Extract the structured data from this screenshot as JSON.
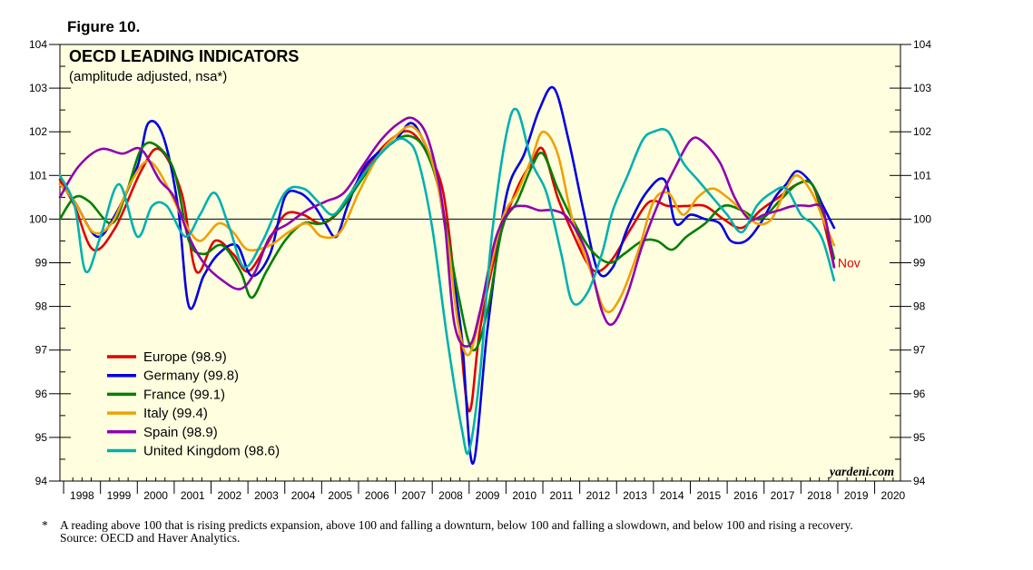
{
  "figure_label": "Figure 10.",
  "watermark": "yardeni.com",
  "footnote": {
    "marker": "*",
    "text": "A reading above 100 that is rising predicts expansion, above 100 and falling a downturn, below 100 and falling a slowdown, and below 100 and rising a recovery.",
    "source": "Source: OECD and Haver Analytics."
  },
  "chart_data": {
    "type": "line",
    "title": "OECD LEADING INDICATORS",
    "subtitle": "(amplitude adjusted, nsa*)",
    "xlabel": "",
    "ylabel": "",
    "xlim": [
      1997.9,
      2020.7
    ],
    "ylim": [
      94,
      104
    ],
    "y_ticks": [
      94,
      95,
      96,
      97,
      98,
      99,
      100,
      101,
      102,
      103,
      104
    ],
    "x_tick_labels": [
      "1998",
      "1999",
      "2000",
      "2001",
      "2002",
      "2003",
      "2004",
      "2005",
      "2006",
      "2007",
      "2008",
      "2009",
      "2010",
      "2011",
      "2012",
      "2013",
      "2014",
      "2015",
      "2016",
      "2017",
      "2018",
      "2019",
      "2020"
    ],
    "reference_line": 100,
    "grid": false,
    "legend_position": "lower-left",
    "annotation": {
      "text": "Nov",
      "x": 2018.9,
      "y": 99.0,
      "color": "#e00000"
    },
    "series": [
      {
        "name": "Europe (98.9)",
        "color": "#e00000",
        "x": [
          1997.9,
          1998.3,
          1998.8,
          1999.4,
          2000.1,
          2000.6,
          2001.2,
          2001.6,
          2002.1,
          2002.6,
          2003.0,
          2003.5,
          2004.0,
          2004.5,
          2005.0,
          2005.5,
          2006.0,
          2006.5,
          2007.0,
          2007.4,
          2007.8,
          2008.3,
          2008.7,
          2009.0,
          2009.3,
          2009.8,
          2010.3,
          2010.7,
          2011.0,
          2011.4,
          2011.8,
          2012.2,
          2012.5,
          2012.9,
          2013.4,
          2013.9,
          2014.4,
          2014.9,
          2015.4,
          2015.9,
          2016.4,
          2016.9,
          2017.4,
          2017.9,
          2018.3,
          2018.6,
          2018.9
        ],
        "y": [
          100.9,
          100.3,
          99.3,
          99.8,
          101.1,
          101.6,
          100.6,
          98.8,
          99.5,
          99.2,
          98.8,
          99.4,
          100.1,
          100.1,
          99.9,
          100.2,
          100.9,
          101.5,
          101.9,
          102.0,
          101.6,
          100.6,
          97.8,
          95.6,
          97.5,
          99.5,
          100.7,
          101.3,
          101.6,
          100.5,
          99.7,
          99.0,
          98.8,
          99.1,
          99.8,
          100.4,
          100.3,
          100.3,
          100.3,
          100.0,
          99.8,
          100.2,
          100.5,
          100.8,
          100.8,
          100.0,
          98.9
        ]
      },
      {
        "name": "Germany (99.8)",
        "color": "#0000e0",
        "x": [
          1997.9,
          1998.3,
          1998.9,
          1999.4,
          2000.0,
          2000.3,
          2000.7,
          2001.1,
          2001.4,
          2001.8,
          2002.2,
          2002.7,
          2003.1,
          2003.6,
          2004.0,
          2004.4,
          2004.8,
          2005.1,
          2005.4,
          2005.7,
          2006.1,
          2006.5,
          2007.0,
          2007.4,
          2007.7,
          2008.1,
          2008.5,
          2008.8,
          2009.1,
          2009.5,
          2010.0,
          2010.5,
          2010.9,
          2011.3,
          2011.7,
          2012.1,
          2012.5,
          2012.9,
          2013.3,
          2013.8,
          2014.3,
          2014.6,
          2015.0,
          2015.4,
          2015.8,
          2016.1,
          2016.5,
          2016.9,
          2017.3,
          2017.6,
          2017.9,
          2018.3,
          2018.6,
          2018.9
        ],
        "y": [
          100.8,
          100.4,
          99.6,
          100.1,
          101.2,
          102.2,
          101.9,
          100.3,
          98.0,
          98.7,
          99.2,
          99.4,
          98.7,
          99.2,
          100.5,
          100.6,
          100.3,
          99.9,
          99.6,
          100.3,
          101.1,
          101.5,
          101.8,
          102.2,
          101.9,
          101.0,
          99.0,
          97.3,
          94.4,
          97.5,
          100.5,
          101.5,
          102.5,
          103.0,
          101.8,
          100.2,
          98.8,
          98.9,
          99.8,
          100.6,
          100.9,
          99.9,
          100.1,
          100.0,
          99.9,
          99.5,
          99.5,
          99.9,
          100.5,
          100.8,
          101.1,
          100.8,
          100.3,
          99.8
        ]
      },
      {
        "name": "France (99.1)",
        "color": "#008000",
        "x": [
          1997.9,
          1998.3,
          1998.7,
          1999.3,
          1999.7,
          2000.1,
          2000.5,
          2001.0,
          2001.4,
          2001.8,
          2002.3,
          2002.8,
          2003.1,
          2003.5,
          2004.0,
          2004.5,
          2005.0,
          2005.5,
          2006.0,
          2006.5,
          2007.0,
          2007.4,
          2007.8,
          2008.2,
          2008.7,
          2009.1,
          2009.5,
          2009.9,
          2010.3,
          2010.7,
          2011.0,
          2011.4,
          2011.8,
          2012.3,
          2012.8,
          2013.2,
          2013.7,
          2014.1,
          2014.5,
          2014.9,
          2015.4,
          2015.9,
          2016.4,
          2016.9,
          2017.4,
          2017.9,
          2018.3,
          2018.6,
          2018.9
        ],
        "y": [
          100.0,
          100.5,
          100.4,
          99.9,
          100.6,
          101.6,
          101.7,
          101.1,
          99.5,
          99.2,
          99.4,
          98.8,
          98.2,
          98.8,
          99.5,
          99.9,
          99.9,
          100.2,
          100.8,
          101.4,
          101.8,
          101.9,
          101.6,
          100.6,
          98.3,
          97.0,
          97.9,
          99.8,
          100.4,
          101.2,
          101.5,
          100.7,
          100.0,
          99.3,
          99.0,
          99.2,
          99.5,
          99.5,
          99.3,
          99.6,
          99.9,
          100.3,
          100.2,
          100.0,
          100.4,
          100.8,
          100.8,
          100.1,
          99.1
        ]
      },
      {
        "name": "Italy (99.4)",
        "color": "#f0a000",
        "x": [
          1997.9,
          1998.3,
          1998.8,
          1999.3,
          1999.8,
          2000.2,
          2000.5,
          2000.9,
          2001.3,
          2001.7,
          2002.2,
          2002.6,
          2003.0,
          2003.6,
          2004.1,
          2004.6,
          2005.0,
          2005.5,
          2006.0,
          2006.5,
          2007.0,
          2007.5,
          2008.0,
          2008.4,
          2008.7,
          2009.0,
          2009.4,
          2009.9,
          2010.3,
          2010.7,
          2011.0,
          2011.4,
          2011.8,
          2012.3,
          2012.7,
          2013.1,
          2013.6,
          2014.0,
          2014.4,
          2014.8,
          2015.2,
          2015.6,
          2016.0,
          2016.4,
          2016.8,
          2017.2,
          2017.6,
          2017.9,
          2018.3,
          2018.6,
          2018.9
        ],
        "y": [
          100.8,
          100.4,
          99.7,
          99.9,
          100.8,
          101.3,
          101.2,
          100.6,
          99.9,
          99.5,
          99.9,
          99.7,
          99.3,
          99.4,
          99.7,
          99.9,
          99.6,
          99.7,
          100.6,
          101.4,
          101.9,
          102.1,
          101.3,
          99.6,
          97.6,
          96.9,
          98.2,
          100.0,
          100.6,
          101.4,
          102.0,
          101.5,
          100.0,
          98.8,
          97.9,
          98.2,
          99.3,
          100.4,
          100.6,
          100.1,
          100.5,
          100.7,
          100.5,
          100.2,
          99.9,
          100.0,
          100.7,
          101.0,
          100.6,
          100.0,
          99.4
        ]
      },
      {
        "name": "Spain (98.9)",
        "color": "#9000b0",
        "x": [
          1997.9,
          1998.4,
          1999.0,
          1999.6,
          2000.1,
          2000.6,
          2001.0,
          2001.4,
          2001.8,
          2002.3,
          2002.8,
          2003.2,
          2003.6,
          2004.1,
          2004.6,
          2005.1,
          2005.6,
          2006.1,
          2006.6,
          2007.1,
          2007.5,
          2007.9,
          2008.3,
          2008.6,
          2009.0,
          2009.3,
          2009.7,
          2010.1,
          2010.5,
          2010.9,
          2011.3,
          2011.7,
          2012.2,
          2012.6,
          2012.9,
          2013.3,
          2013.7,
          2014.2,
          2014.6,
          2015.0,
          2015.3,
          2015.8,
          2016.2,
          2016.6,
          2017.0,
          2017.4,
          2017.8,
          2018.2,
          2018.6,
          2018.9
        ],
        "y": [
          100.5,
          101.2,
          101.6,
          101.5,
          101.6,
          100.9,
          100.5,
          99.6,
          99.0,
          98.6,
          98.4,
          98.8,
          99.6,
          99.9,
          100.2,
          100.4,
          100.6,
          101.2,
          101.8,
          102.2,
          102.3,
          101.8,
          100.2,
          97.6,
          97.1,
          97.9,
          99.5,
          100.2,
          100.3,
          100.2,
          100.2,
          100.0,
          99.2,
          97.9,
          97.6,
          98.3,
          99.4,
          100.5,
          101.2,
          101.8,
          101.8,
          101.3,
          100.5,
          100.0,
          100.1,
          100.2,
          100.3,
          100.3,
          100.2,
          98.9
        ]
      },
      {
        "name": "United Kingdom (98.6)",
        "color": "#00b0b0",
        "x": [
          1997.9,
          1998.3,
          1998.6,
          1999.0,
          1999.5,
          2000.0,
          2000.4,
          2000.8,
          2001.3,
          2001.7,
          2002.1,
          2002.5,
          2002.9,
          2003.4,
          2004.0,
          2004.5,
          2004.9,
          2005.3,
          2005.7,
          2006.2,
          2006.6,
          2007.0,
          2007.3,
          2007.6,
          2008.0,
          2008.4,
          2008.8,
          2009.0,
          2009.3,
          2009.6,
          2010.0,
          2010.3,
          2010.7,
          2011.1,
          2011.5,
          2011.8,
          2012.2,
          2012.6,
          2012.9,
          2013.3,
          2013.7,
          2014.0,
          2014.4,
          2014.8,
          2015.2,
          2015.6,
          2016.0,
          2016.4,
          2016.8,
          2017.2,
          2017.6,
          2018.0,
          2018.3,
          2018.6,
          2018.9
        ],
        "y": [
          101.0,
          100.3,
          98.8,
          99.6,
          100.8,
          99.6,
          100.3,
          100.3,
          99.6,
          100.1,
          100.6,
          99.8,
          98.9,
          99.5,
          100.6,
          100.7,
          100.4,
          100.1,
          100.5,
          101.1,
          101.5,
          101.8,
          101.8,
          101.4,
          99.8,
          97.3,
          95.2,
          94.7,
          96.5,
          99.5,
          101.9,
          102.5,
          101.3,
          100.6,
          99.2,
          98.1,
          98.3,
          99.2,
          100.2,
          101.0,
          101.8,
          102.0,
          102.0,
          101.3,
          100.9,
          100.5,
          100.1,
          99.7,
          100.3,
          100.6,
          100.7,
          100.1,
          99.9,
          99.5,
          98.6
        ]
      }
    ]
  }
}
